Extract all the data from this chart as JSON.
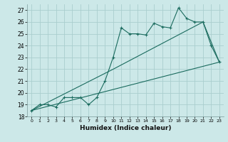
{
  "xlabel": "Humidex (Indice chaleur)",
  "background_color": "#cce8e8",
  "grid_color": "#aacece",
  "line_color": "#1a6b5e",
  "xlim": [
    -0.5,
    23.5
  ],
  "ylim": [
    18,
    27.5
  ],
  "yticks": [
    18,
    19,
    20,
    21,
    22,
    23,
    24,
    25,
    26,
    27
  ],
  "xticks": [
    0,
    1,
    2,
    3,
    4,
    5,
    6,
    7,
    8,
    9,
    10,
    11,
    12,
    13,
    14,
    15,
    16,
    17,
    18,
    19,
    20,
    21,
    22,
    23
  ],
  "series1_x": [
    0,
    1,
    2,
    3,
    4,
    5,
    6,
    7,
    8,
    9,
    10,
    11,
    12,
    13,
    14,
    15,
    16,
    17,
    18,
    19,
    20,
    21,
    22,
    23
  ],
  "series1_y": [
    18.5,
    19.0,
    19.0,
    18.8,
    19.6,
    19.6,
    19.6,
    19.0,
    19.6,
    21.0,
    23.0,
    25.5,
    25.0,
    25.0,
    24.9,
    25.9,
    25.6,
    25.5,
    27.2,
    26.3,
    26.0,
    26.0,
    24.0,
    22.6
  ],
  "series2_x": [
    0,
    10,
    21,
    23
  ],
  "series2_y": [
    18.5,
    22.0,
    26.0,
    22.6
  ],
  "series3_x": [
    0,
    23
  ],
  "series3_y": [
    18.5,
    22.6
  ]
}
